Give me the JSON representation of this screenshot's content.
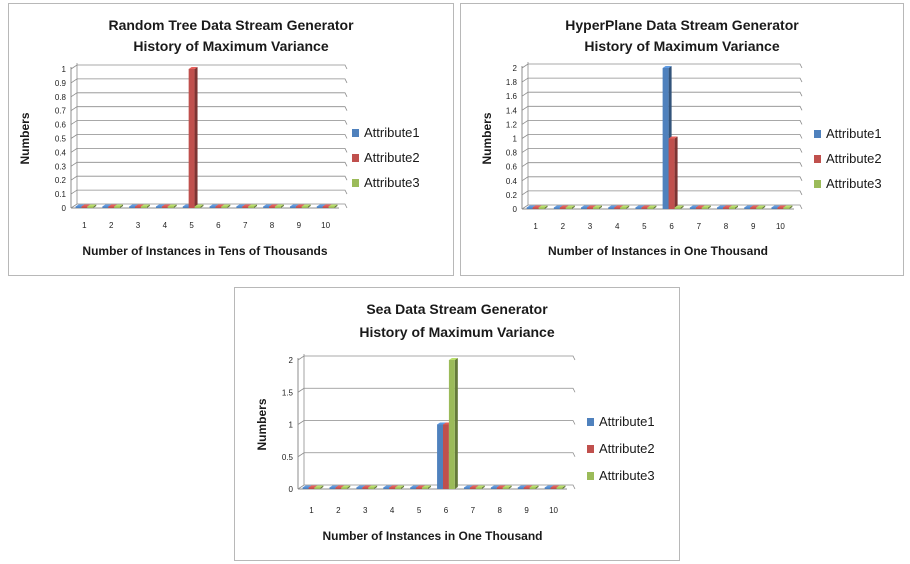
{
  "chart_data": [
    {
      "type": "bar",
      "title": "Random Tree Data Stream Generator",
      "subtitle": "History of Maximum Variance",
      "xlabel": "Number of Instances in Tens of Thousands",
      "ylabel": "Numbers",
      "categories": [
        "1",
        "2",
        "3",
        "4",
        "5",
        "6",
        "7",
        "8",
        "9",
        "10"
      ],
      "ylim": [
        0,
        1
      ],
      "yticks": [
        "0",
        "0.1",
        "0.2",
        "0.3",
        "0.4",
        "0.5",
        "0.6",
        "0.7",
        "0.8",
        "0.9",
        "1"
      ],
      "grid": true,
      "legend_position": "right",
      "series": [
        {
          "name": "Attribute1",
          "color": "#4f81bd",
          "values": [
            0,
            0,
            0,
            0,
            0,
            0,
            0,
            0,
            0,
            0
          ]
        },
        {
          "name": "Attribute2",
          "color": "#c0504d",
          "values": [
            0,
            0,
            0,
            0,
            1,
            0,
            0,
            0,
            0,
            0
          ]
        },
        {
          "name": "Attribute3",
          "color": "#9bbb59",
          "values": [
            0,
            0,
            0,
            0,
            0,
            0,
            0,
            0,
            0,
            0
          ]
        }
      ]
    },
    {
      "type": "bar",
      "title": "HyperPlane Data Stream Generator",
      "subtitle": "History of Maximum Variance",
      "xlabel": "Number of Instances in One Thousand",
      "ylabel": "Numbers",
      "categories": [
        "1",
        "2",
        "3",
        "4",
        "5",
        "6",
        "7",
        "8",
        "9",
        "10"
      ],
      "ylim": [
        0,
        2
      ],
      "yticks": [
        "0",
        "0.2",
        "0.4",
        "0.6",
        "0.8",
        "1",
        "1.2",
        "1.4",
        "1.6",
        "1.8",
        "2"
      ],
      "grid": true,
      "legend_position": "right",
      "series": [
        {
          "name": "Attribute1",
          "color": "#4f81bd",
          "values": [
            0,
            0,
            0,
            0,
            0,
            2,
            0,
            0,
            0,
            0
          ]
        },
        {
          "name": "Attribute2",
          "color": "#c0504d",
          "values": [
            0,
            0,
            0,
            0,
            0,
            1,
            0,
            0,
            0,
            0
          ]
        },
        {
          "name": "Attribute3",
          "color": "#9bbb59",
          "values": [
            0,
            0,
            0,
            0,
            0,
            0,
            0,
            0,
            0,
            0
          ]
        }
      ]
    },
    {
      "type": "bar",
      "title": "Sea Data Stream Generator",
      "subtitle": "History of Maximum Variance",
      "xlabel": "Number of Instances in One Thousand",
      "ylabel": "Numbers",
      "categories": [
        "1",
        "2",
        "3",
        "4",
        "5",
        "6",
        "7",
        "8",
        "9",
        "10"
      ],
      "ylim": [
        0,
        2
      ],
      "yticks": [
        "0",
        "0.5",
        "1",
        "1.5",
        "2"
      ],
      "grid": true,
      "legend_position": "right",
      "series": [
        {
          "name": "Attribute1",
          "color": "#4f81bd",
          "values": [
            0,
            0,
            0,
            0,
            0,
            1,
            0,
            0,
            0,
            0
          ]
        },
        {
          "name": "Attribute2",
          "color": "#c0504d",
          "values": [
            0,
            0,
            0,
            0,
            0,
            1,
            0,
            0,
            0,
            0
          ]
        },
        {
          "name": "Attribute3",
          "color": "#9bbb59",
          "values": [
            0,
            0,
            0,
            0,
            0,
            2,
            0,
            0,
            0,
            0
          ]
        }
      ]
    }
  ]
}
